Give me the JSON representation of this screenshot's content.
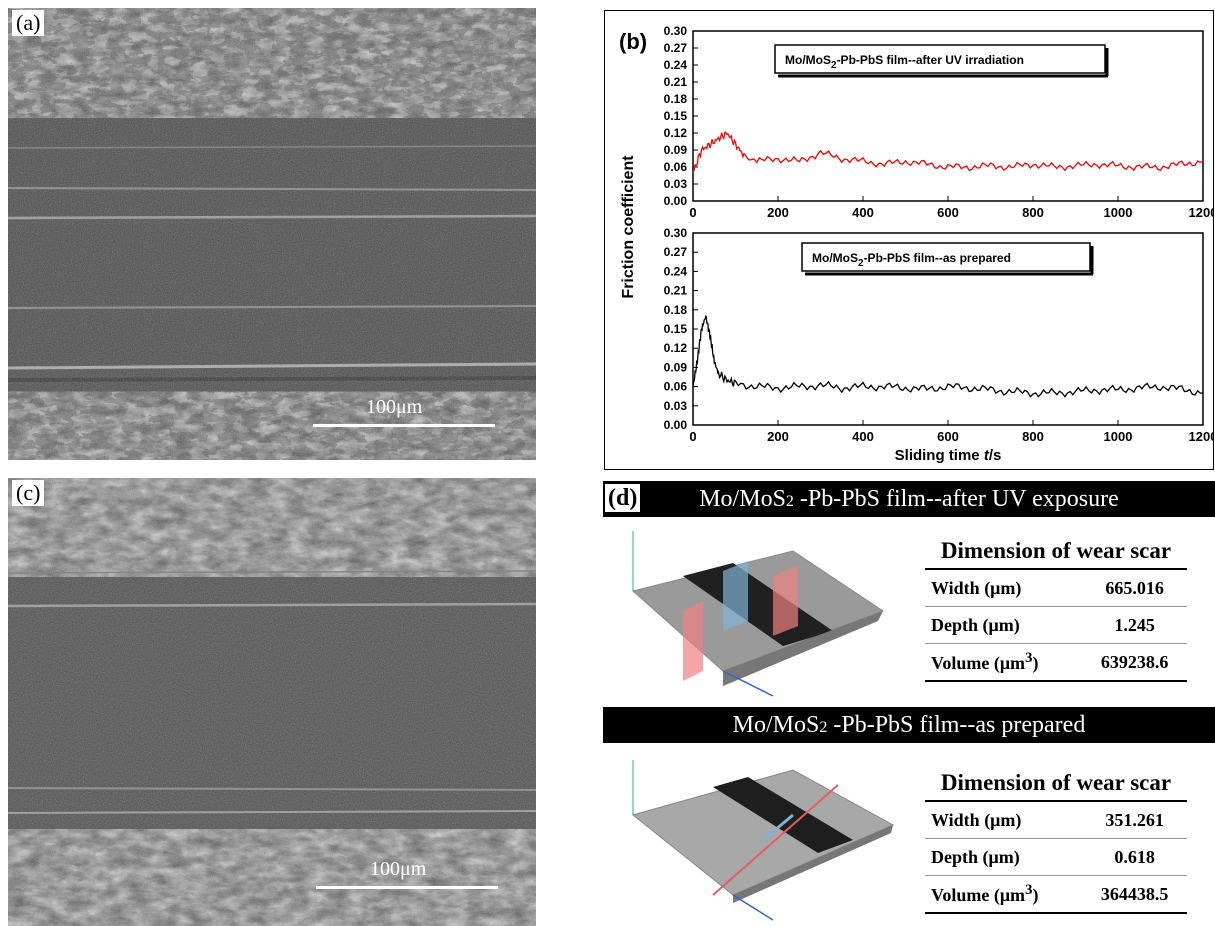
{
  "panel_a": {
    "label": "(a)",
    "scale": "100μm"
  },
  "panel_c": {
    "label": "(c)",
    "scale": "100μm"
  },
  "panel_b": {
    "label": "(b)",
    "ylabel": "Friction coefficient",
    "xlabel_main": "Sliding time ",
    "xlabel_var": "t",
    "xlabel_unit": "/s",
    "top_legend": {
      "pre": "Mo/MoS",
      "sub": "2",
      "post": "-Pb-PbS film--after UV irradiation"
    },
    "bottom_legend": {
      "pre": "Mo/MoS",
      "sub": "2",
      "post": "-Pb-PbS film--as prepared"
    },
    "yticks": [
      "0.00",
      "0.03",
      "0.06",
      "0.09",
      "0.12",
      "0.15",
      "0.18",
      "0.21",
      "0.24",
      "0.27",
      "0.30"
    ],
    "xticks": [
      "0",
      "200",
      "400",
      "600",
      "800",
      "1000",
      "1200"
    ]
  },
  "chart_data": [
    {
      "type": "line",
      "series": [
        {
          "name": "Mo/MoS2-Pb-PbS film--after UV irradiation",
          "color": "#ff0000",
          "x": [
            0,
            20,
            40,
            60,
            80,
            100,
            120,
            150,
            200,
            250,
            300,
            350,
            400,
            450,
            500,
            550,
            600,
            650,
            700,
            750,
            800,
            850,
            900,
            950,
            1000,
            1050,
            1100,
            1150,
            1200
          ],
          "y": [
            0.05,
            0.09,
            0.1,
            0.11,
            0.12,
            0.1,
            0.08,
            0.07,
            0.075,
            0.07,
            0.085,
            0.075,
            0.07,
            0.065,
            0.07,
            0.065,
            0.06,
            0.06,
            0.062,
            0.06,
            0.065,
            0.06,
            0.062,
            0.065,
            0.062,
            0.06,
            0.06,
            0.065,
            0.07
          ]
        }
      ],
      "xlim": [
        0,
        1200
      ],
      "ylim": [
        0,
        0.3
      ]
    },
    {
      "type": "line",
      "series": [
        {
          "name": "Mo/MoS2-Pb-PbS film--as prepared",
          "color": "#000000",
          "x": [
            0,
            10,
            20,
            30,
            40,
            50,
            60,
            80,
            100,
            150,
            200,
            250,
            300,
            350,
            400,
            450,
            500,
            550,
            600,
            650,
            700,
            750,
            800,
            850,
            900,
            950,
            1000,
            1050,
            1100,
            1150,
            1200
          ],
          "y": [
            0.06,
            0.1,
            0.15,
            0.17,
            0.14,
            0.1,
            0.08,
            0.07,
            0.065,
            0.06,
            0.058,
            0.06,
            0.062,
            0.058,
            0.06,
            0.06,
            0.058,
            0.056,
            0.06,
            0.058,
            0.055,
            0.052,
            0.05,
            0.05,
            0.052,
            0.055,
            0.055,
            0.058,
            0.06,
            0.056,
            0.05
          ]
        }
      ],
      "xlim": [
        0,
        1200
      ],
      "ylim": [
        0,
        0.3
      ]
    }
  ],
  "panel_d": {
    "label": "(d)",
    "top_header": {
      "pre": "Mo/MoS",
      "sub": "2",
      "post": " -Pb-PbS film--after UV exposure"
    },
    "bottom_header": {
      "pre": "Mo/MoS",
      "sub": "2",
      "post": " -Pb-PbS film--as prepared"
    },
    "table_title": "Dimension of wear scar",
    "row_labels": {
      "width": "Width (μm)",
      "depth": "Depth (μm)",
      "volume_pre": "Volume (μm",
      "volume_sup": "3",
      "volume_post": ")"
    },
    "top_values": {
      "width": "665.016",
      "depth": "1.245",
      "volume": "639238.6"
    },
    "bottom_values": {
      "width": "351.261",
      "depth": "0.618",
      "volume": "364438.5"
    }
  }
}
